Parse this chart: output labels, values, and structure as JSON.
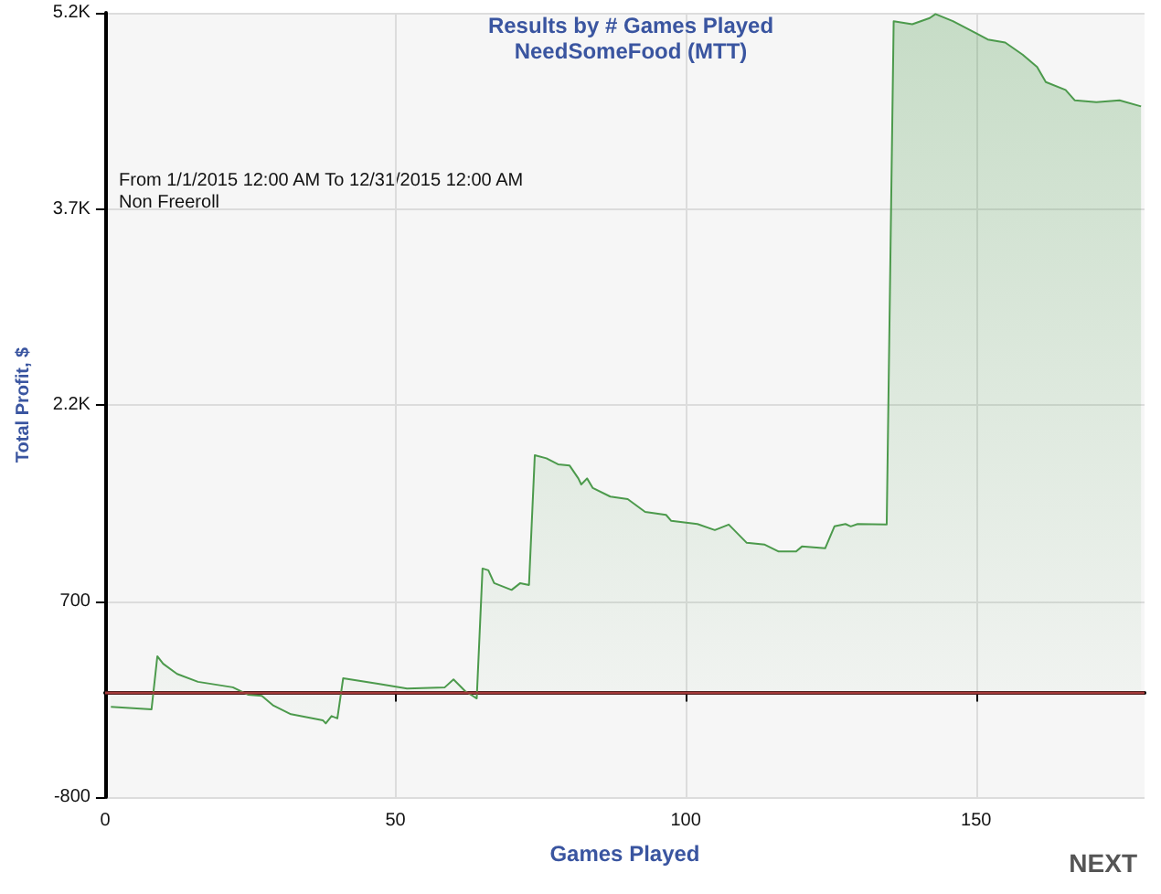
{
  "chart_data": {
    "type": "area",
    "title": "Results by # Games Played",
    "subtitle": "NeedSomeFood (MTT)",
    "xlabel": "Games Played",
    "ylabel": "Total Profit, $",
    "annotations": [
      "From 1/1/2015 12:00 AM To 12/31/2015 12:00 AM",
      "Non Freeroll",
      "NEXT"
    ],
    "series": [
      {
        "color": "#4c9a4c",
        "x": [
          1,
          8,
          9,
          10,
          12.4,
          16,
          22,
          24.6,
          27,
          29,
          32,
          37.5,
          38,
          39,
          40,
          41,
          47,
          52,
          58.5,
          60,
          62,
          64,
          65,
          66,
          67,
          70,
          71.5,
          73,
          74,
          76,
          78,
          80,
          81.5,
          82,
          83,
          84,
          87,
          90,
          93,
          96.6,
          97.5,
          102,
          105,
          107.4,
          110.5,
          113.6,
          116,
          119,
          120,
          124,
          125.6,
          127.5,
          128.4,
          129.6,
          134.6,
          135.8,
          139,
          142,
          143,
          146,
          150,
          152,
          155,
          158,
          160.5,
          162,
          165.4,
          167,
          170.7,
          174.7,
          178.4
        ],
        "values": [
          -110,
          -128,
          277,
          220,
          142,
          82,
          40,
          -16,
          -26,
          -100,
          -166,
          -212,
          -236,
          -180,
          -198,
          109,
          67,
          30,
          40,
          100,
          11,
          -45,
          949,
          935,
          837,
          785,
          837,
          823,
          1816,
          1792,
          1746,
          1736,
          1638,
          1592,
          1638,
          1564,
          1499,
          1480,
          1382,
          1359,
          1313,
          1289,
          1243,
          1285,
          1145,
          1131,
          1079,
          1079,
          1117,
          1103,
          1271,
          1289,
          1271,
          1289,
          1285,
          5136,
          5113,
          5160,
          5190,
          5136,
          5043,
          4996,
          4973,
          4880,
          4786,
          4670,
          4610,
          4530,
          4516,
          4530,
          4484
        ]
      }
    ],
    "xlim": [
      0,
      179
    ],
    "xticks": [
      0,
      50,
      100,
      150
    ],
    "ylim": [
      -800,
      5200
    ],
    "yticks": [
      -800,
      700,
      {
        "value": 2200,
        "label": "2.2K"
      },
      {
        "value": 3700,
        "label": "3.7K"
      },
      {
        "value": 5200,
        "label": "5.2K"
      }
    ],
    "ref_lines": [
      {
        "axis": "y",
        "value": 0,
        "color": "#a33a3a"
      }
    ],
    "grid": true,
    "marker": "none",
    "line_style": "solid"
  }
}
